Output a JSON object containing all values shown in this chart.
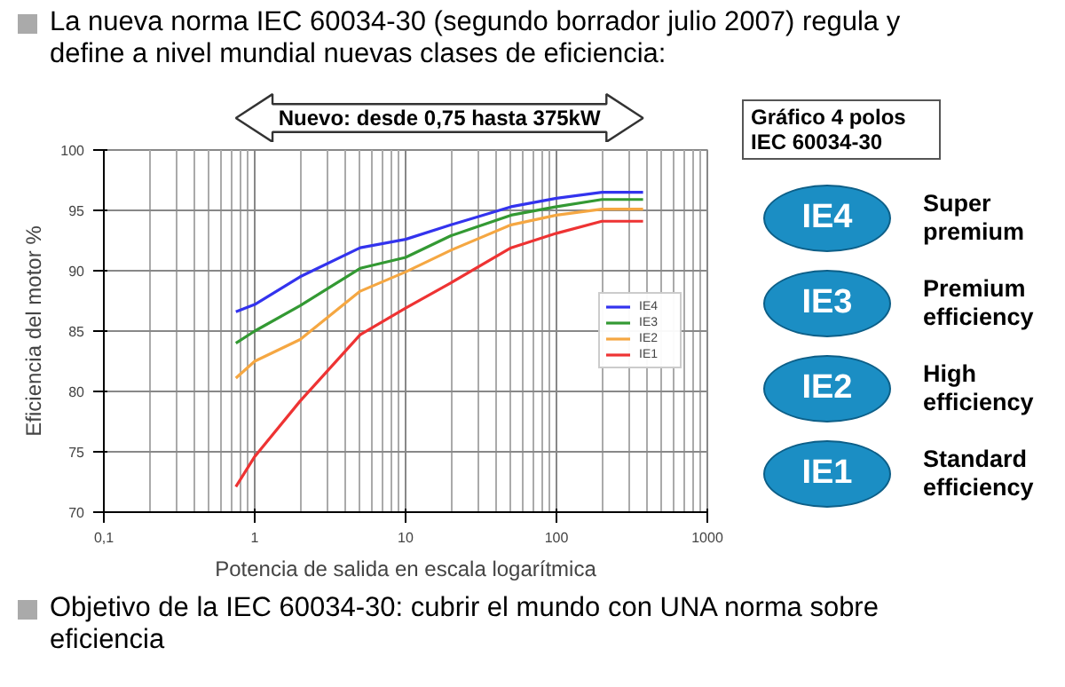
{
  "chart_data": [
    {
      "type": "line",
      "title": "La nueva norma IEC 60034-30 (segundo borrador julio 2007) regula y define a nivel mundial nuevas clases de eficiencia:",
      "xlabel": "Potencia de salida en escala logarítmica",
      "ylabel": "Eficiencia del motor %",
      "log": "x",
      "xlim": [
        0.1,
        1000
      ],
      "xticks": [
        {
          "value": 0.1,
          "label": "0,1"
        },
        1,
        10,
        100,
        1000
      ],
      "ylim": [
        70,
        100
      ],
      "yticks": [
        70,
        75,
        80,
        85,
        90,
        95,
        100
      ],
      "grid": true,
      "legend": "right",
      "annotations": [
        "Nuevo: desde 0,75 hasta 375kW",
        "Objetivo de la IEC 60034-30: cubrir el mundo con UNA norma sobre eficiencia"
      ],
      "x": [
        0.75,
        1,
        2,
        5,
        10,
        20,
        50,
        100,
        200,
        375
      ],
      "series": [
        {
          "name": "IE4",
          "color": "#3333ee",
          "values": [
            86.6,
            87.2,
            89.5,
            91.9,
            92.6,
            93.8,
            95.3,
            96.0,
            96.5,
            96.5
          ]
        },
        {
          "name": "IE3",
          "color": "#339933",
          "values": [
            84.0,
            85.0,
            87.1,
            90.2,
            91.1,
            92.9,
            94.6,
            95.3,
            95.9,
            95.9
          ]
        },
        {
          "name": "IE2",
          "color": "#f5a742",
          "values": [
            81.1,
            82.5,
            84.3,
            88.3,
            89.9,
            91.7,
            93.8,
            94.6,
            95.1,
            95.1
          ]
        },
        {
          "name": "IE1",
          "color": "#ee3333",
          "values": [
            72.1,
            74.6,
            79.2,
            84.7,
            86.9,
            89.0,
            91.9,
            93.1,
            94.1,
            94.1
          ]
        }
      ]
    },
    {
      "type": "other",
      "title": "Gráfico 4 polos\nIEC 60034-30",
      "color": "#1b8ec4",
      "categories": [
        "IE4",
        "IE3",
        "IE2",
        "IE1"
      ],
      "annotations": [
        "Super premium",
        "Premium efficiency",
        "High efficiency",
        "Standard efficiency"
      ]
    }
  ]
}
